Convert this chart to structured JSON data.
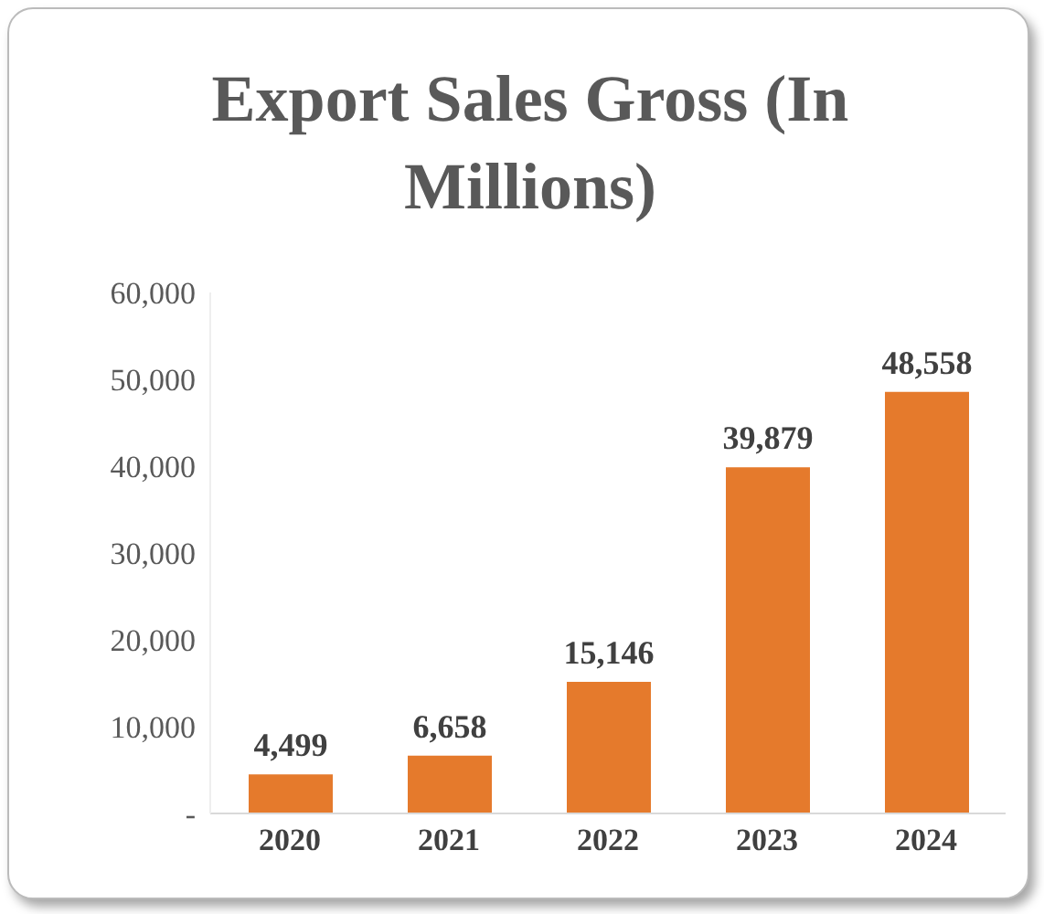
{
  "chart_data": {
    "type": "bar",
    "title": "Export Sales Gross (In Millions)",
    "categories": [
      "2020",
      "2021",
      "2022",
      "2023",
      "2024"
    ],
    "values": [
      4499,
      6658,
      15146,
      39879,
      48558
    ],
    "value_labels": [
      "4,499",
      "6,658",
      "15,146",
      "39,879",
      "48,558"
    ],
    "color": "#e57a2c",
    "ylim": [
      0,
      60000
    ],
    "yticks": [
      {
        "value": 0,
        "label": "-"
      },
      {
        "value": 10000,
        "label": "10,000"
      },
      {
        "value": 20000,
        "label": "20,000"
      },
      {
        "value": 30000,
        "label": "30,000"
      },
      {
        "value": 40000,
        "label": "40,000"
      },
      {
        "value": 50000,
        "label": "50,000"
      },
      {
        "value": 60000,
        "label": "60,000"
      }
    ],
    "grid": false,
    "legend": false
  }
}
